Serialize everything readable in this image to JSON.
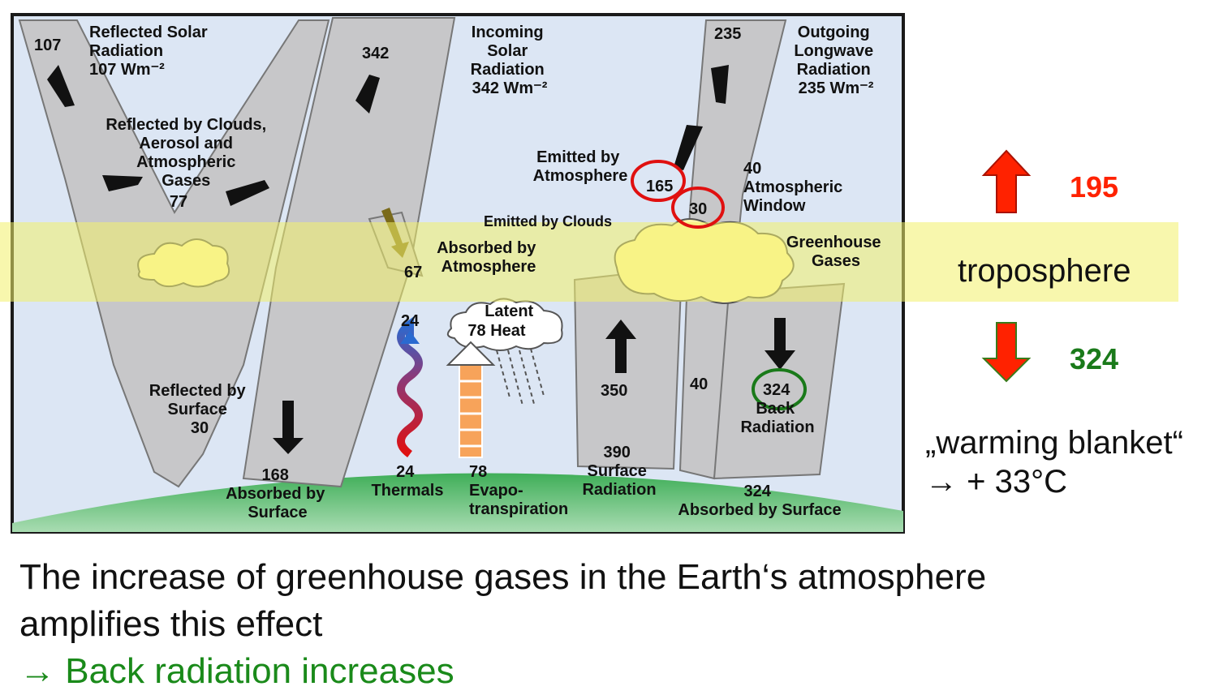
{
  "diagram": {
    "reflected_solar_value": "107",
    "reflected_solar_title": [
      "Reflected Solar",
      "Radiation",
      "107 Wm⁻²"
    ],
    "incoming_value": "342",
    "incoming_title": [
      "Incoming",
      "Solar",
      "Radiation",
      "342 Wm⁻²"
    ],
    "outgoing_value": "235",
    "outgoing_title": [
      "Outgoing",
      "Longwave",
      "Radiation",
      "235 Wm⁻²"
    ],
    "reflected_clouds": [
      "Reflected by Clouds,",
      "Aerosol and",
      "Atmospheric",
      "Gases",
      "77"
    ],
    "emitted_atmosphere": [
      "Emitted by",
      "Atmosphere"
    ],
    "emitted_atm_value": "165",
    "emitted_clouds": "Emitted by Clouds",
    "emitted_clouds_value": "30",
    "atm_window": [
      "40",
      "Atmospheric",
      "Window"
    ],
    "greenhouse_gases": [
      "Greenhouse",
      "Gases"
    ],
    "absorbed_atm": [
      "Absorbed by",
      "Atmosphere"
    ],
    "absorbed_atm_value": "67",
    "latent_heat": [
      "Latent",
      "78 Heat"
    ],
    "thermals_top": "24",
    "reflected_surface": [
      "Reflected by",
      "Surface",
      "30"
    ],
    "surface_350": "350",
    "window_40_low": "40",
    "back_value": "324",
    "back_radiation": [
      "Back",
      "Radiation"
    ],
    "absorbed_surface": [
      "168",
      "Absorbed by",
      "Surface"
    ],
    "thermals": [
      "24",
      "Thermals"
    ],
    "evapo": [
      "78",
      "Evapo-",
      "transpiration"
    ],
    "surface_radiation": [
      "390",
      "Surface",
      "Radiation"
    ],
    "absorbed_by_surface_324": [
      "324",
      "Absorbed by Surface"
    ]
  },
  "side": {
    "up_value": "195",
    "troposphere": "troposphere",
    "down_value": "324",
    "blanket_line1": "„warming blanket“",
    "blanket_line2": "→ + 33°C",
    "up_color": "#ff2200",
    "down_color": "#1a7a1a"
  },
  "caption": {
    "line1": "The increase of greenhouse gases in the Earth‘s atmosphere",
    "line2": "amplifies this effect",
    "line3": "→ Back radiation increases"
  }
}
